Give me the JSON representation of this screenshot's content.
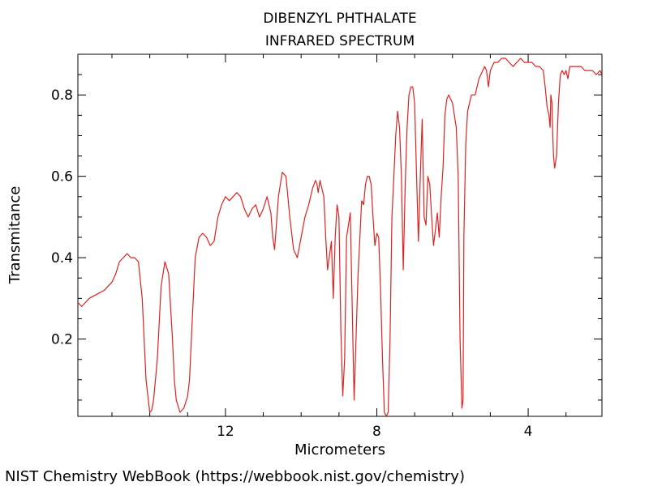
{
  "chart_data": {
    "type": "line",
    "title": "DIBENZYL PHTHALATE",
    "subtitle": "INFRARED SPECTRUM",
    "xlabel": "Micrometers",
    "ylabel": "Transmitance",
    "xlim": [
      15.9,
      2.05
    ],
    "ylim": [
      0.01,
      0.9
    ],
    "x_major_ticks": [
      12,
      8,
      4
    ],
    "x_tick_labels": [
      "12",
      "8",
      "4"
    ],
    "y_major_ticks": [
      0.2,
      0.4,
      0.6,
      0.8
    ],
    "y_tick_labels": [
      "0.2",
      "0.4",
      "0.6",
      "0.8"
    ],
    "grid": false,
    "series": [
      {
        "color": "#dd2222",
        "x": [
          15.9,
          15.8,
          15.7,
          15.6,
          15.4,
          15.2,
          15.0,
          14.9,
          14.8,
          14.7,
          14.6,
          14.5,
          14.4,
          14.3,
          14.2,
          14.1,
          14.0,
          13.95,
          13.9,
          13.8,
          13.7,
          13.6,
          13.5,
          13.4,
          13.35,
          13.3,
          13.2,
          13.1,
          13.0,
          12.95,
          12.9,
          12.8,
          12.7,
          12.6,
          12.5,
          12.4,
          12.3,
          12.2,
          12.1,
          12.0,
          11.9,
          11.8,
          11.7,
          11.6,
          11.5,
          11.4,
          11.3,
          11.2,
          11.1,
          11.0,
          10.9,
          10.8,
          10.75,
          10.7,
          10.6,
          10.5,
          10.4,
          10.3,
          10.2,
          10.1,
          10.0,
          9.9,
          9.8,
          9.75,
          9.7,
          9.62,
          9.58,
          9.55,
          9.5,
          9.45,
          9.4,
          9.35,
          9.3,
          9.2,
          9.15,
          9.1,
          9.05,
          9.0,
          8.95,
          8.9,
          8.85,
          8.8,
          8.7,
          8.6,
          8.5,
          8.4,
          8.35,
          8.3,
          8.25,
          8.2,
          8.15,
          8.1,
          8.05,
          8.0,
          7.95,
          7.9,
          7.85,
          7.8,
          7.75,
          7.7,
          7.65,
          7.6,
          7.55,
          7.5,
          7.45,
          7.4,
          7.35,
          7.3,
          7.25,
          7.2,
          7.15,
          7.1,
          7.05,
          7.0,
          6.95,
          6.9,
          6.85,
          6.8,
          6.75,
          6.7,
          6.65,
          6.6,
          6.55,
          6.5,
          6.45,
          6.4,
          6.35,
          6.3,
          6.25,
          6.2,
          6.15,
          6.1,
          6.0,
          5.9,
          5.85,
          5.8,
          5.75,
          5.72,
          5.7,
          5.65,
          5.6,
          5.55,
          5.5,
          5.4,
          5.3,
          5.2,
          5.15,
          5.1,
          5.05,
          5.0,
          4.95,
          4.9,
          4.85,
          4.8,
          4.7,
          4.6,
          4.5,
          4.4,
          4.3,
          4.2,
          4.1,
          4.0,
          3.9,
          3.8,
          3.7,
          3.6,
          3.55,
          3.5,
          3.45,
          3.42,
          3.4,
          3.37,
          3.35,
          3.33,
          3.3,
          3.25,
          3.2,
          3.15,
          3.1,
          3.05,
          3.0,
          2.95,
          2.9,
          2.8,
          2.7,
          2.6,
          2.5,
          2.4,
          2.3,
          2.2,
          2.1,
          2.05
        ],
        "y": [
          0.29,
          0.28,
          0.29,
          0.3,
          0.31,
          0.32,
          0.34,
          0.36,
          0.39,
          0.4,
          0.41,
          0.4,
          0.4,
          0.39,
          0.3,
          0.1,
          0.02,
          0.025,
          0.05,
          0.15,
          0.33,
          0.39,
          0.36,
          0.2,
          0.1,
          0.05,
          0.02,
          0.03,
          0.06,
          0.1,
          0.2,
          0.4,
          0.45,
          0.46,
          0.45,
          0.43,
          0.44,
          0.5,
          0.53,
          0.55,
          0.54,
          0.55,
          0.56,
          0.55,
          0.52,
          0.5,
          0.52,
          0.53,
          0.5,
          0.52,
          0.55,
          0.51,
          0.45,
          0.42,
          0.55,
          0.61,
          0.6,
          0.5,
          0.42,
          0.4,
          0.45,
          0.5,
          0.53,
          0.55,
          0.57,
          0.59,
          0.58,
          0.56,
          0.59,
          0.57,
          0.55,
          0.45,
          0.37,
          0.44,
          0.3,
          0.45,
          0.53,
          0.5,
          0.22,
          0.06,
          0.15,
          0.45,
          0.51,
          0.05,
          0.35,
          0.54,
          0.53,
          0.58,
          0.6,
          0.6,
          0.58,
          0.5,
          0.43,
          0.46,
          0.45,
          0.32,
          0.15,
          0.02,
          0.01,
          0.02,
          0.2,
          0.5,
          0.6,
          0.7,
          0.76,
          0.72,
          0.6,
          0.37,
          0.58,
          0.72,
          0.8,
          0.82,
          0.82,
          0.78,
          0.6,
          0.44,
          0.6,
          0.74,
          0.5,
          0.48,
          0.6,
          0.58,
          0.5,
          0.43,
          0.47,
          0.51,
          0.45,
          0.55,
          0.62,
          0.75,
          0.79,
          0.8,
          0.78,
          0.72,
          0.6,
          0.2,
          0.03,
          0.05,
          0.45,
          0.68,
          0.76,
          0.78,
          0.8,
          0.8,
          0.84,
          0.86,
          0.87,
          0.86,
          0.82,
          0.86,
          0.87,
          0.88,
          0.88,
          0.88,
          0.89,
          0.89,
          0.88,
          0.87,
          0.88,
          0.89,
          0.88,
          0.88,
          0.88,
          0.87,
          0.87,
          0.86,
          0.82,
          0.77,
          0.75,
          0.72,
          0.8,
          0.78,
          0.7,
          0.65,
          0.62,
          0.65,
          0.78,
          0.85,
          0.86,
          0.85,
          0.86,
          0.84,
          0.87,
          0.87,
          0.87,
          0.87,
          0.86,
          0.86,
          0.86,
          0.85,
          0.86,
          0.85
        ]
      }
    ]
  },
  "source_note": "NIST Chemistry WebBook (https://webbook.nist.gov/chemistry)"
}
